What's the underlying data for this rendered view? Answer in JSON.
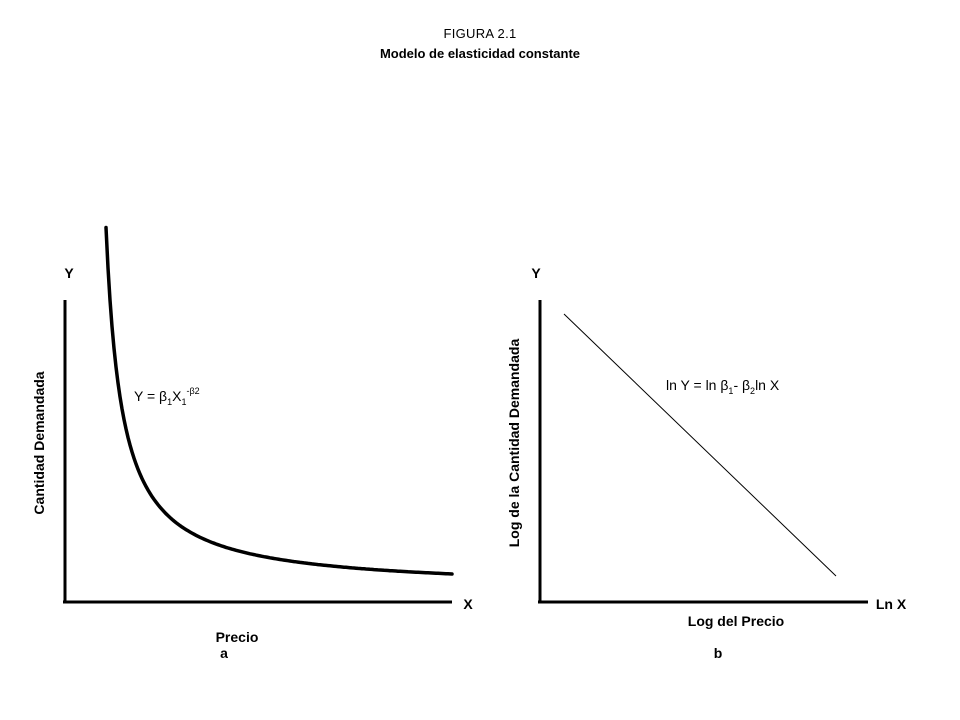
{
  "figure": {
    "label": "FIGURA 2.1",
    "title": "Modelo de elasticidad constante"
  },
  "chart_data": [
    {
      "type": "line",
      "panel_label": "a",
      "title": "",
      "xlabel": "Precio",
      "ylabel": "Cantidad Demandada",
      "x_axis_end_label": "X",
      "y_axis_end_label": "Y",
      "equation": {
        "base": "Y = β",
        "sub1": "1",
        "mid": "X",
        "sub2": "1",
        "sup": "-β2"
      },
      "curve": "power",
      "stroke_color": "#000000"
    },
    {
      "type": "line",
      "panel_label": "b",
      "title": "",
      "xlabel": "Log del Precio",
      "ylabel": "Log de la Cantidad Demandada",
      "x_axis_end_label": "Ln X",
      "y_axis_end_label": "Y",
      "equation": {
        "p1": "ln Y = ln β",
        "sub1": "1",
        "p2": "- β",
        "sub2": "2",
        "p3": "ln X"
      },
      "curve": "linear",
      "stroke_color": "#000000"
    }
  ]
}
